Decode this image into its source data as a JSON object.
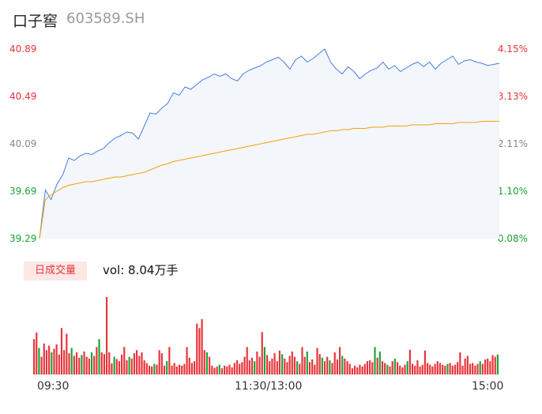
{
  "header": {
    "name": "口子窖",
    "code": "603589.SH"
  },
  "colors": {
    "price_line": "#4a7fe0",
    "avg_line": "#f2a20c",
    "area_fill": "#f3f6fb",
    "up": "#e8333a",
    "down": "#1aa336",
    "neutral": "#888888"
  },
  "volume_panel": {
    "period_label": "日成交量",
    "vol_text": "vol: 8.04万手"
  },
  "chart_data": {
    "type": "line",
    "price_axis": {
      "ylim": [
        39.29,
        40.89
      ],
      "ticks": [
        "40.89",
        "40.49",
        "40.09",
        "39.69",
        "39.29"
      ]
    },
    "pct_axis": {
      "ticks": [
        "4.15%",
        "3.13%",
        "2.11%",
        "1.10%",
        "0.08%"
      ]
    },
    "x_ticks": [
      "09:30",
      "11:30/13:00",
      "15:00"
    ],
    "price_series": [
      39.29,
      39.7,
      39.62,
      39.75,
      39.83,
      39.97,
      39.95,
      39.99,
      40.01,
      40.0,
      40.03,
      40.05,
      40.1,
      40.14,
      40.16,
      40.19,
      40.18,
      40.13,
      40.24,
      40.35,
      40.34,
      40.39,
      40.43,
      40.52,
      40.5,
      40.57,
      40.55,
      40.59,
      40.63,
      40.65,
      40.68,
      40.66,
      40.68,
      40.64,
      40.62,
      40.68,
      40.71,
      40.73,
      40.75,
      40.78,
      40.8,
      40.82,
      40.78,
      40.72,
      40.8,
      40.83,
      40.78,
      40.81,
      40.85,
      40.89,
      40.78,
      40.72,
      40.68,
      40.74,
      40.7,
      40.64,
      40.68,
      40.71,
      40.73,
      40.78,
      40.72,
      40.75,
      40.7,
      40.73,
      40.76,
      40.78,
      40.74,
      40.78,
      40.72,
      40.77,
      40.8,
      40.83,
      40.76,
      40.79,
      40.8,
      40.78,
      40.77,
      40.75,
      40.76,
      40.77
    ],
    "avg_series": [
      39.29,
      39.62,
      39.66,
      39.69,
      39.72,
      39.74,
      39.75,
      39.76,
      39.77,
      39.77,
      39.78,
      39.79,
      39.8,
      39.81,
      39.81,
      39.82,
      39.83,
      39.84,
      39.85,
      39.87,
      39.89,
      39.91,
      39.92,
      39.94,
      39.95,
      39.96,
      39.97,
      39.98,
      39.99,
      40.0,
      40.01,
      40.02,
      40.03,
      40.04,
      40.05,
      40.06,
      40.07,
      40.08,
      40.09,
      40.1,
      40.11,
      40.12,
      40.13,
      40.14,
      40.15,
      40.16,
      40.17,
      40.17,
      40.18,
      40.19,
      40.2,
      40.2,
      40.21,
      40.21,
      40.22,
      40.22,
      40.22,
      40.23,
      40.23,
      40.23,
      40.24,
      40.24,
      40.24,
      40.24,
      40.25,
      40.25,
      40.25,
      40.25,
      40.26,
      40.26,
      40.26,
      40.26,
      40.27,
      40.27,
      40.27,
      40.27,
      40.28,
      40.28,
      40.28,
      40.28
    ],
    "volume_bars": [
      {
        "v": 0.8,
        "up": true
      },
      {
        "v": 0.95,
        "up": true
      },
      {
        "v": 0.6,
        "up": false
      },
      {
        "v": 0.4,
        "up": true
      },
      {
        "v": 0.7,
        "up": true
      },
      {
        "v": 0.55,
        "up": true
      },
      {
        "v": 0.65,
        "up": true
      },
      {
        "v": 0.5,
        "up": false
      },
      {
        "v": 0.58,
        "up": true
      },
      {
        "v": 0.68,
        "up": true
      },
      {
        "v": 0.45,
        "up": true
      },
      {
        "v": 1.05,
        "up": true
      },
      {
        "v": 0.55,
        "up": true
      },
      {
        "v": 0.92,
        "up": true
      },
      {
        "v": 0.48,
        "up": true
      },
      {
        "v": 0.6,
        "up": false
      },
      {
        "v": 0.42,
        "up": true
      },
      {
        "v": 0.5,
        "up": true
      },
      {
        "v": 0.38,
        "up": true
      },
      {
        "v": 0.44,
        "up": false
      },
      {
        "v": 0.52,
        "up": true
      },
      {
        "v": 0.4,
        "up": true
      },
      {
        "v": 0.36,
        "up": true
      },
      {
        "v": 0.5,
        "up": false
      },
      {
        "v": 0.42,
        "up": true
      },
      {
        "v": 0.62,
        "up": true
      },
      {
        "v": 0.8,
        "up": false
      },
      {
        "v": 0.5,
        "up": true
      },
      {
        "v": 0.46,
        "up": true
      },
      {
        "v": 1.75,
        "up": true
      },
      {
        "v": 0.5,
        "up": true
      },
      {
        "v": 0.25,
        "up": true
      },
      {
        "v": 0.4,
        "up": false
      },
      {
        "v": 0.35,
        "up": true
      },
      {
        "v": 0.3,
        "up": true
      },
      {
        "v": 0.45,
        "up": true
      },
      {
        "v": 0.62,
        "up": true
      },
      {
        "v": 0.32,
        "up": true
      },
      {
        "v": 0.4,
        "up": false
      },
      {
        "v": 0.36,
        "up": true
      },
      {
        "v": 0.48,
        "up": true
      },
      {
        "v": 0.55,
        "up": true
      },
      {
        "v": 0.42,
        "up": true
      },
      {
        "v": 0.5,
        "up": true
      },
      {
        "v": 0.32,
        "up": true
      },
      {
        "v": 0.26,
        "up": true
      },
      {
        "v": 0.2,
        "up": true
      },
      {
        "v": 0.18,
        "up": true
      },
      {
        "v": 0.24,
        "up": false
      },
      {
        "v": 0.22,
        "up": true
      },
      {
        "v": 0.55,
        "up": true
      },
      {
        "v": 0.48,
        "up": true
      },
      {
        "v": 0.2,
        "up": true
      },
      {
        "v": 0.3,
        "up": false
      },
      {
        "v": 0.62,
        "up": true
      },
      {
        "v": 0.2,
        "up": true
      },
      {
        "v": 0.26,
        "up": true
      },
      {
        "v": 0.18,
        "up": true
      },
      {
        "v": 0.22,
        "up": true
      },
      {
        "v": 0.2,
        "up": true
      },
      {
        "v": 0.24,
        "up": true
      },
      {
        "v": 0.62,
        "up": true
      },
      {
        "v": 0.38,
        "up": true
      },
      {
        "v": 0.26,
        "up": true
      },
      {
        "v": 0.3,
        "up": true
      },
      {
        "v": 1.15,
        "up": true
      },
      {
        "v": 1.05,
        "up": true
      },
      {
        "v": 1.25,
        "up": true
      },
      {
        "v": 0.55,
        "up": true
      },
      {
        "v": 0.5,
        "up": false
      },
      {
        "v": 0.4,
        "up": true
      },
      {
        "v": 0.2,
        "up": true
      },
      {
        "v": 0.15,
        "up": true
      },
      {
        "v": 0.18,
        "up": true
      },
      {
        "v": 0.22,
        "up": false
      },
      {
        "v": 0.14,
        "up": true
      },
      {
        "v": 0.2,
        "up": true
      },
      {
        "v": 0.18,
        "up": true
      },
      {
        "v": 0.22,
        "up": true
      },
      {
        "v": 0.16,
        "up": true
      },
      {
        "v": 0.26,
        "up": true
      },
      {
        "v": 0.32,
        "up": true
      },
      {
        "v": 0.24,
        "up": true
      },
      {
        "v": 0.28,
        "up": true
      },
      {
        "v": 0.4,
        "up": true
      },
      {
        "v": 0.62,
        "up": true
      },
      {
        "v": 0.32,
        "up": true
      },
      {
        "v": 0.38,
        "up": true
      },
      {
        "v": 0.3,
        "up": false
      },
      {
        "v": 0.52,
        "up": true
      },
      {
        "v": 0.4,
        "up": true
      },
      {
        "v": 0.96,
        "up": true
      },
      {
        "v": 0.62,
        "up": false
      },
      {
        "v": 0.44,
        "up": true
      },
      {
        "v": 0.3,
        "up": true
      },
      {
        "v": 0.36,
        "up": true
      },
      {
        "v": 0.48,
        "up": true
      },
      {
        "v": 0.3,
        "up": true
      },
      {
        "v": 0.54,
        "up": true
      },
      {
        "v": 0.46,
        "up": false
      },
      {
        "v": 0.36,
        "up": true
      },
      {
        "v": 0.28,
        "up": true
      },
      {
        "v": 0.42,
        "up": true
      },
      {
        "v": 0.52,
        "up": true
      },
      {
        "v": 0.4,
        "up": true
      },
      {
        "v": 0.3,
        "up": false
      },
      {
        "v": 0.24,
        "up": true
      },
      {
        "v": 0.62,
        "up": true
      },
      {
        "v": 0.4,
        "up": true
      },
      {
        "v": 0.52,
        "up": false
      },
      {
        "v": 0.28,
        "up": true
      },
      {
        "v": 0.34,
        "up": true
      },
      {
        "v": 0.22,
        "up": true
      },
      {
        "v": 0.6,
        "up": true
      },
      {
        "v": 0.46,
        "up": true
      },
      {
        "v": 0.38,
        "up": false
      },
      {
        "v": 0.3,
        "up": true
      },
      {
        "v": 0.4,
        "up": true
      },
      {
        "v": 0.32,
        "up": false
      },
      {
        "v": 0.26,
        "up": true
      },
      {
        "v": 0.5,
        "up": true
      },
      {
        "v": 0.34,
        "up": true
      },
      {
        "v": 0.62,
        "up": true
      },
      {
        "v": 0.42,
        "up": false
      },
      {
        "v": 0.36,
        "up": true
      },
      {
        "v": 0.3,
        "up": true
      },
      {
        "v": 0.24,
        "up": true
      },
      {
        "v": 0.14,
        "up": true
      },
      {
        "v": 0.2,
        "up": true
      },
      {
        "v": 0.16,
        "up": true
      },
      {
        "v": 0.22,
        "up": true
      },
      {
        "v": 0.18,
        "up": true
      },
      {
        "v": 0.24,
        "up": true
      },
      {
        "v": 0.3,
        "up": true
      },
      {
        "v": 0.32,
        "up": true
      },
      {
        "v": 0.28,
        "up": true
      },
      {
        "v": 0.62,
        "up": false
      },
      {
        "v": 0.38,
        "up": true
      },
      {
        "v": 0.52,
        "up": false
      },
      {
        "v": 0.3,
        "up": true
      },
      {
        "v": 0.26,
        "up": true
      },
      {
        "v": 0.22,
        "up": false
      },
      {
        "v": 0.18,
        "up": true
      },
      {
        "v": 0.3,
        "up": true
      },
      {
        "v": 0.36,
        "up": false
      },
      {
        "v": 0.28,
        "up": true
      },
      {
        "v": 0.2,
        "up": true
      },
      {
        "v": 0.16,
        "up": true
      },
      {
        "v": 0.22,
        "up": true
      },
      {
        "v": 0.3,
        "up": false
      },
      {
        "v": 0.56,
        "up": true
      },
      {
        "v": 0.24,
        "up": true
      },
      {
        "v": 0.2,
        "up": true
      },
      {
        "v": 0.32,
        "up": true
      },
      {
        "v": 0.18,
        "up": true
      },
      {
        "v": 0.22,
        "up": true
      },
      {
        "v": 0.54,
        "up": true
      },
      {
        "v": 0.26,
        "up": true
      },
      {
        "v": 0.22,
        "up": true
      },
      {
        "v": 0.18,
        "up": true
      },
      {
        "v": 0.24,
        "up": true
      },
      {
        "v": 0.3,
        "up": true
      },
      {
        "v": 0.26,
        "up": true
      },
      {
        "v": 0.22,
        "up": true
      },
      {
        "v": 0.2,
        "up": true
      },
      {
        "v": 0.24,
        "up": false
      },
      {
        "v": 0.26,
        "up": true
      },
      {
        "v": 0.2,
        "up": true
      },
      {
        "v": 0.22,
        "up": true
      },
      {
        "v": 0.28,
        "up": true
      },
      {
        "v": 0.5,
        "up": true
      },
      {
        "v": 0.2,
        "up": true
      },
      {
        "v": 0.36,
        "up": true
      },
      {
        "v": 0.42,
        "up": true
      },
      {
        "v": 0.24,
        "up": true
      },
      {
        "v": 0.26,
        "up": true
      },
      {
        "v": 0.2,
        "up": true
      },
      {
        "v": 0.24,
        "up": true
      },
      {
        "v": 0.3,
        "up": false
      },
      {
        "v": 0.24,
        "up": true
      },
      {
        "v": 0.34,
        "up": true
      },
      {
        "v": 0.36,
        "up": true
      },
      {
        "v": 0.3,
        "up": true
      },
      {
        "v": 0.44,
        "up": true
      },
      {
        "v": 0.4,
        "up": true
      },
      {
        "v": 0.45,
        "up": false
      }
    ]
  }
}
